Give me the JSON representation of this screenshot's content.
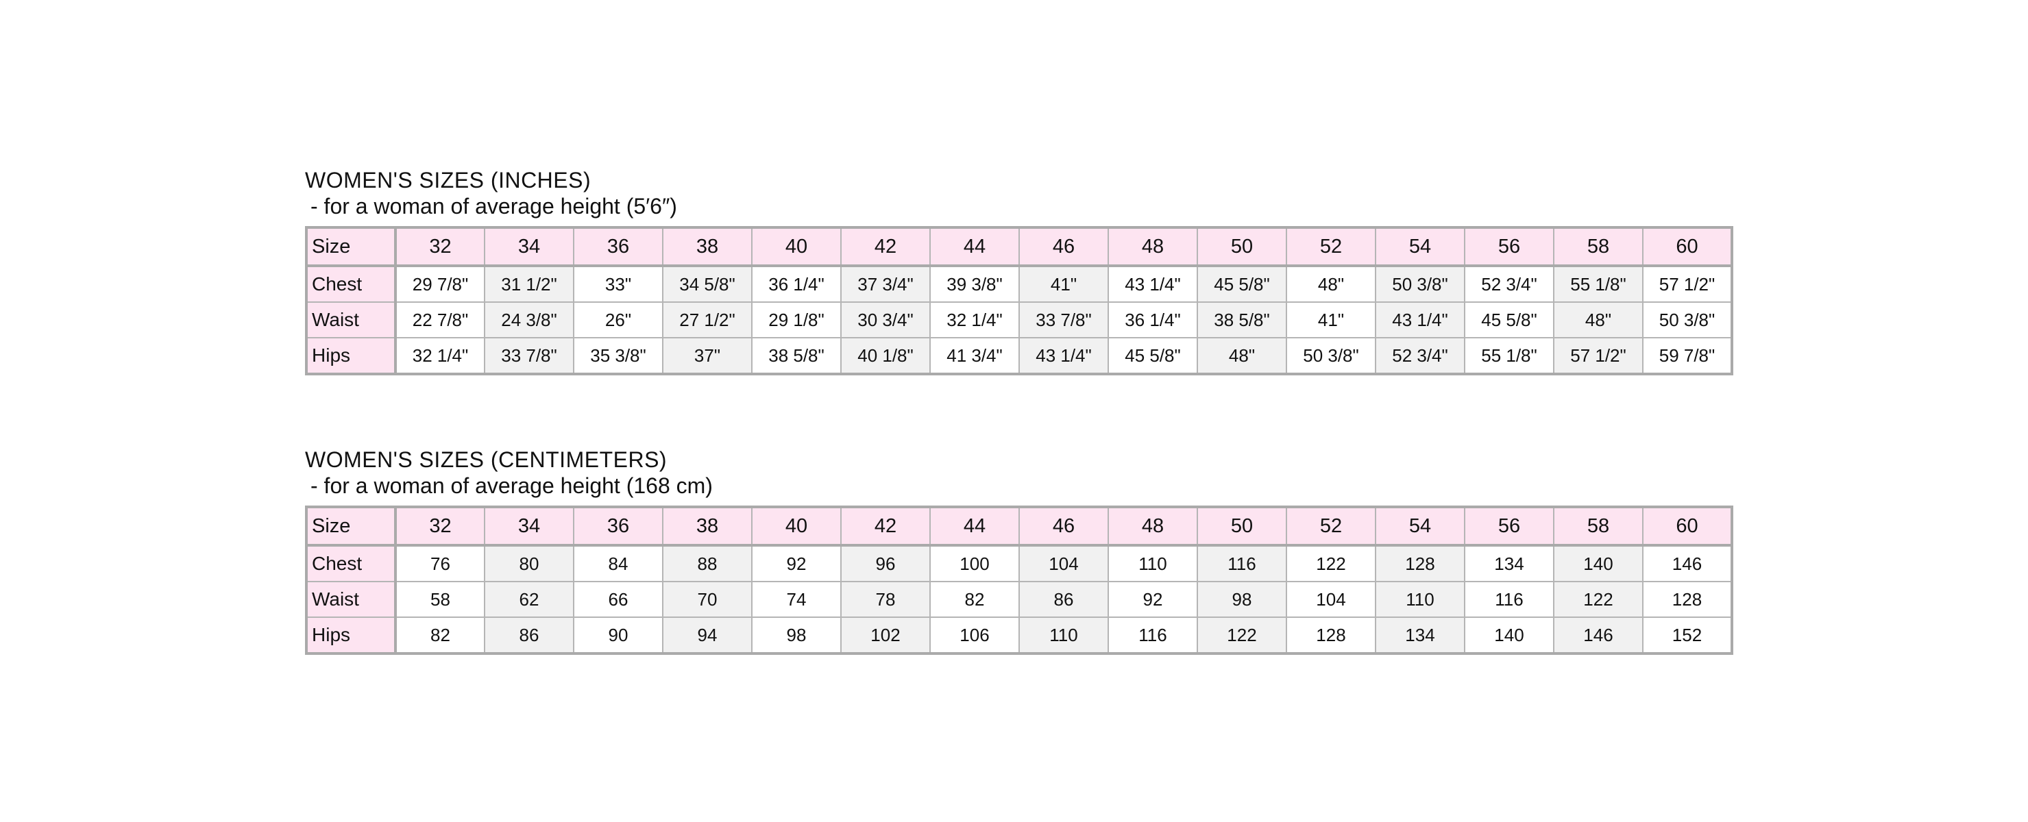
{
  "inches": {
    "title": "WOMEN'S SIZES (INCHES)",
    "subtitle": "- for a woman of average height (5′6″)",
    "header_label": "Size",
    "sizes": [
      "32",
      "34",
      "36",
      "38",
      "40",
      "42",
      "44",
      "46",
      "48",
      "50",
      "52",
      "54",
      "56",
      "58",
      "60"
    ],
    "rows": [
      {
        "label": "Chest",
        "values": [
          "29 7/8\"",
          "31 1/2\"",
          "33\"",
          "34 5/8\"",
          "36 1/4\"",
          "37 3/4\"",
          "39 3/8\"",
          "41\"",
          "43 1/4\"",
          "45 5/8\"",
          "48\"",
          "50 3/8\"",
          "52 3/4\"",
          "55 1/8\"",
          "57 1/2\""
        ]
      },
      {
        "label": "Waist",
        "values": [
          "22 7/8\"",
          "24 3/8\"",
          "26\"",
          "27 1/2\"",
          "29 1/8\"",
          "30 3/4\"",
          "32 1/4\"",
          "33 7/8\"",
          "36 1/4\"",
          "38 5/8\"",
          "41\"",
          "43 1/4\"",
          "45 5/8\"",
          "48\"",
          "50 3/8\""
        ]
      },
      {
        "label": "Hips",
        "values": [
          "32 1/4\"",
          "33 7/8\"",
          "35 3/8\"",
          "37\"",
          "38 5/8\"",
          "40 1/8\"",
          "41 3/4\"",
          "43 1/4\"",
          "45 5/8\"",
          "48\"",
          "50 3/8\"",
          "52 3/4\"",
          "55 1/8\"",
          "57 1/2\"",
          "59 7/8\""
        ]
      }
    ]
  },
  "centimeters": {
    "title": "WOMEN'S SIZES (CENTIMETERS)",
    "subtitle": "- for a woman of average height (168 cm)",
    "header_label": "Size",
    "sizes": [
      "32",
      "34",
      "36",
      "38",
      "40",
      "42",
      "44",
      "46",
      "48",
      "50",
      "52",
      "54",
      "56",
      "58",
      "60"
    ],
    "rows": [
      {
        "label": "Chest",
        "values": [
          "76",
          "80",
          "84",
          "88",
          "92",
          "96",
          "100",
          "104",
          "110",
          "116",
          "122",
          "128",
          "134",
          "140",
          "146"
        ]
      },
      {
        "label": "Waist",
        "values": [
          "58",
          "62",
          "66",
          "70",
          "74",
          "78",
          "82",
          "86",
          "92",
          "98",
          "104",
          "110",
          "116",
          "122",
          "128"
        ]
      },
      {
        "label": "Hips",
        "values": [
          "82",
          "86",
          "90",
          "94",
          "98",
          "102",
          "106",
          "110",
          "116",
          "122",
          "128",
          "134",
          "140",
          "146",
          "152"
        ]
      }
    ]
  },
  "colors": {
    "header_bg": "#fde4f1",
    "alt_column_bg": "#f1f1f1",
    "border": "#aaaaaa"
  }
}
